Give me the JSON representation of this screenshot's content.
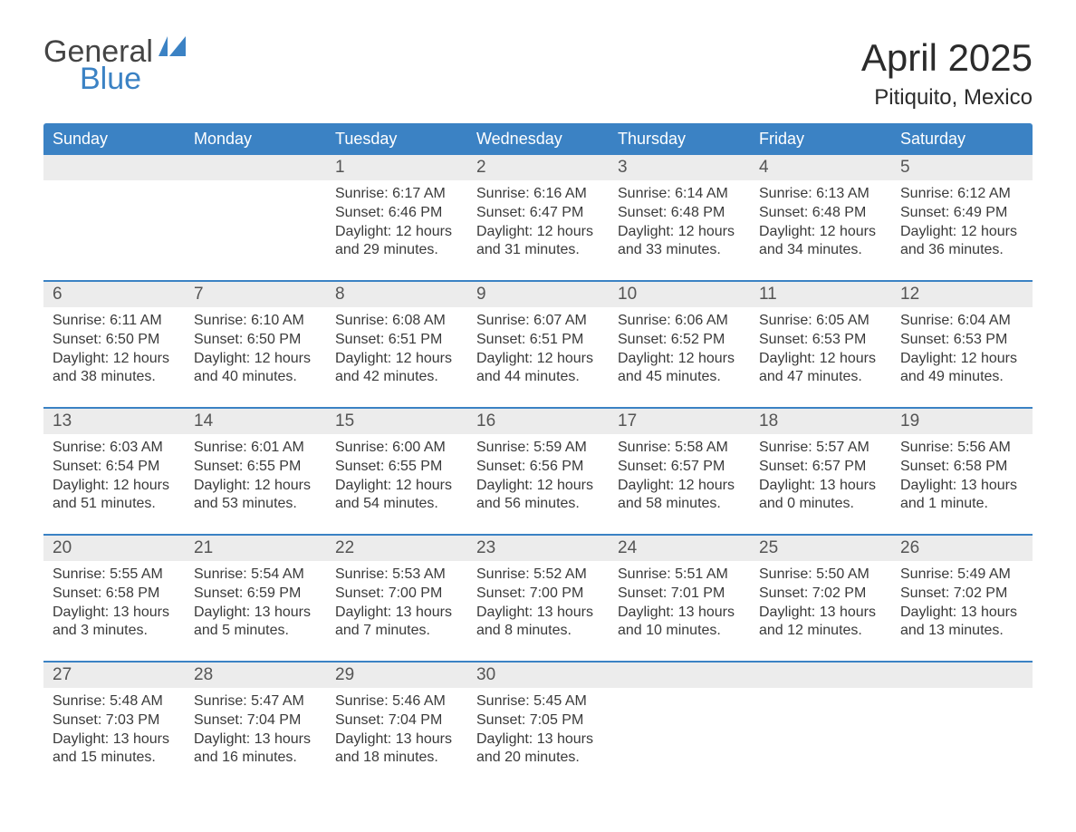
{
  "logo": {
    "text1": "General",
    "text2": "Blue"
  },
  "title": "April 2025",
  "location": "Pitiquito, Mexico",
  "colors": {
    "brand_blue": "#3b82c4",
    "header_text": "#ffffff",
    "daynum_bg": "#ececec",
    "body_text": "#3a3a3a"
  },
  "day_names": [
    "Sunday",
    "Monday",
    "Tuesday",
    "Wednesday",
    "Thursday",
    "Friday",
    "Saturday"
  ],
  "weeks": [
    {
      "days": [
        null,
        null,
        {
          "n": "1",
          "sunrise": "6:17 AM",
          "sunset": "6:46 PM",
          "daylight": "12 hours and 29 minutes."
        },
        {
          "n": "2",
          "sunrise": "6:16 AM",
          "sunset": "6:47 PM",
          "daylight": "12 hours and 31 minutes."
        },
        {
          "n": "3",
          "sunrise": "6:14 AM",
          "sunset": "6:48 PM",
          "daylight": "12 hours and 33 minutes."
        },
        {
          "n": "4",
          "sunrise": "6:13 AM",
          "sunset": "6:48 PM",
          "daylight": "12 hours and 34 minutes."
        },
        {
          "n": "5",
          "sunrise": "6:12 AM",
          "sunset": "6:49 PM",
          "daylight": "12 hours and 36 minutes."
        }
      ]
    },
    {
      "days": [
        {
          "n": "6",
          "sunrise": "6:11 AM",
          "sunset": "6:50 PM",
          "daylight": "12 hours and 38 minutes."
        },
        {
          "n": "7",
          "sunrise": "6:10 AM",
          "sunset": "6:50 PM",
          "daylight": "12 hours and 40 minutes."
        },
        {
          "n": "8",
          "sunrise": "6:08 AM",
          "sunset": "6:51 PM",
          "daylight": "12 hours and 42 minutes."
        },
        {
          "n": "9",
          "sunrise": "6:07 AM",
          "sunset": "6:51 PM",
          "daylight": "12 hours and 44 minutes."
        },
        {
          "n": "10",
          "sunrise": "6:06 AM",
          "sunset": "6:52 PM",
          "daylight": "12 hours and 45 minutes."
        },
        {
          "n": "11",
          "sunrise": "6:05 AM",
          "sunset": "6:53 PM",
          "daylight": "12 hours and 47 minutes."
        },
        {
          "n": "12",
          "sunrise": "6:04 AM",
          "sunset": "6:53 PM",
          "daylight": "12 hours and 49 minutes."
        }
      ]
    },
    {
      "days": [
        {
          "n": "13",
          "sunrise": "6:03 AM",
          "sunset": "6:54 PM",
          "daylight": "12 hours and 51 minutes."
        },
        {
          "n": "14",
          "sunrise": "6:01 AM",
          "sunset": "6:55 PM",
          "daylight": "12 hours and 53 minutes."
        },
        {
          "n": "15",
          "sunrise": "6:00 AM",
          "sunset": "6:55 PM",
          "daylight": "12 hours and 54 minutes."
        },
        {
          "n": "16",
          "sunrise": "5:59 AM",
          "sunset": "6:56 PM",
          "daylight": "12 hours and 56 minutes."
        },
        {
          "n": "17",
          "sunrise": "5:58 AM",
          "sunset": "6:57 PM",
          "daylight": "12 hours and 58 minutes."
        },
        {
          "n": "18",
          "sunrise": "5:57 AM",
          "sunset": "6:57 PM",
          "daylight": "13 hours and 0 minutes."
        },
        {
          "n": "19",
          "sunrise": "5:56 AM",
          "sunset": "6:58 PM",
          "daylight": "13 hours and 1 minute."
        }
      ]
    },
    {
      "days": [
        {
          "n": "20",
          "sunrise": "5:55 AM",
          "sunset": "6:58 PM",
          "daylight": "13 hours and 3 minutes."
        },
        {
          "n": "21",
          "sunrise": "5:54 AM",
          "sunset": "6:59 PM",
          "daylight": "13 hours and 5 minutes."
        },
        {
          "n": "22",
          "sunrise": "5:53 AM",
          "sunset": "7:00 PM",
          "daylight": "13 hours and 7 minutes."
        },
        {
          "n": "23",
          "sunrise": "5:52 AM",
          "sunset": "7:00 PM",
          "daylight": "13 hours and 8 minutes."
        },
        {
          "n": "24",
          "sunrise": "5:51 AM",
          "sunset": "7:01 PM",
          "daylight": "13 hours and 10 minutes."
        },
        {
          "n": "25",
          "sunrise": "5:50 AM",
          "sunset": "7:02 PM",
          "daylight": "13 hours and 12 minutes."
        },
        {
          "n": "26",
          "sunrise": "5:49 AM",
          "sunset": "7:02 PM",
          "daylight": "13 hours and 13 minutes."
        }
      ]
    },
    {
      "days": [
        {
          "n": "27",
          "sunrise": "5:48 AM",
          "sunset": "7:03 PM",
          "daylight": "13 hours and 15 minutes."
        },
        {
          "n": "28",
          "sunrise": "5:47 AM",
          "sunset": "7:04 PM",
          "daylight": "13 hours and 16 minutes."
        },
        {
          "n": "29",
          "sunrise": "5:46 AM",
          "sunset": "7:04 PM",
          "daylight": "13 hours and 18 minutes."
        },
        {
          "n": "30",
          "sunrise": "5:45 AM",
          "sunset": "7:05 PM",
          "daylight": "13 hours and 20 minutes."
        },
        null,
        null,
        null
      ]
    }
  ],
  "labels": {
    "sunrise": "Sunrise:",
    "sunset": "Sunset:",
    "daylight": "Daylight:"
  }
}
